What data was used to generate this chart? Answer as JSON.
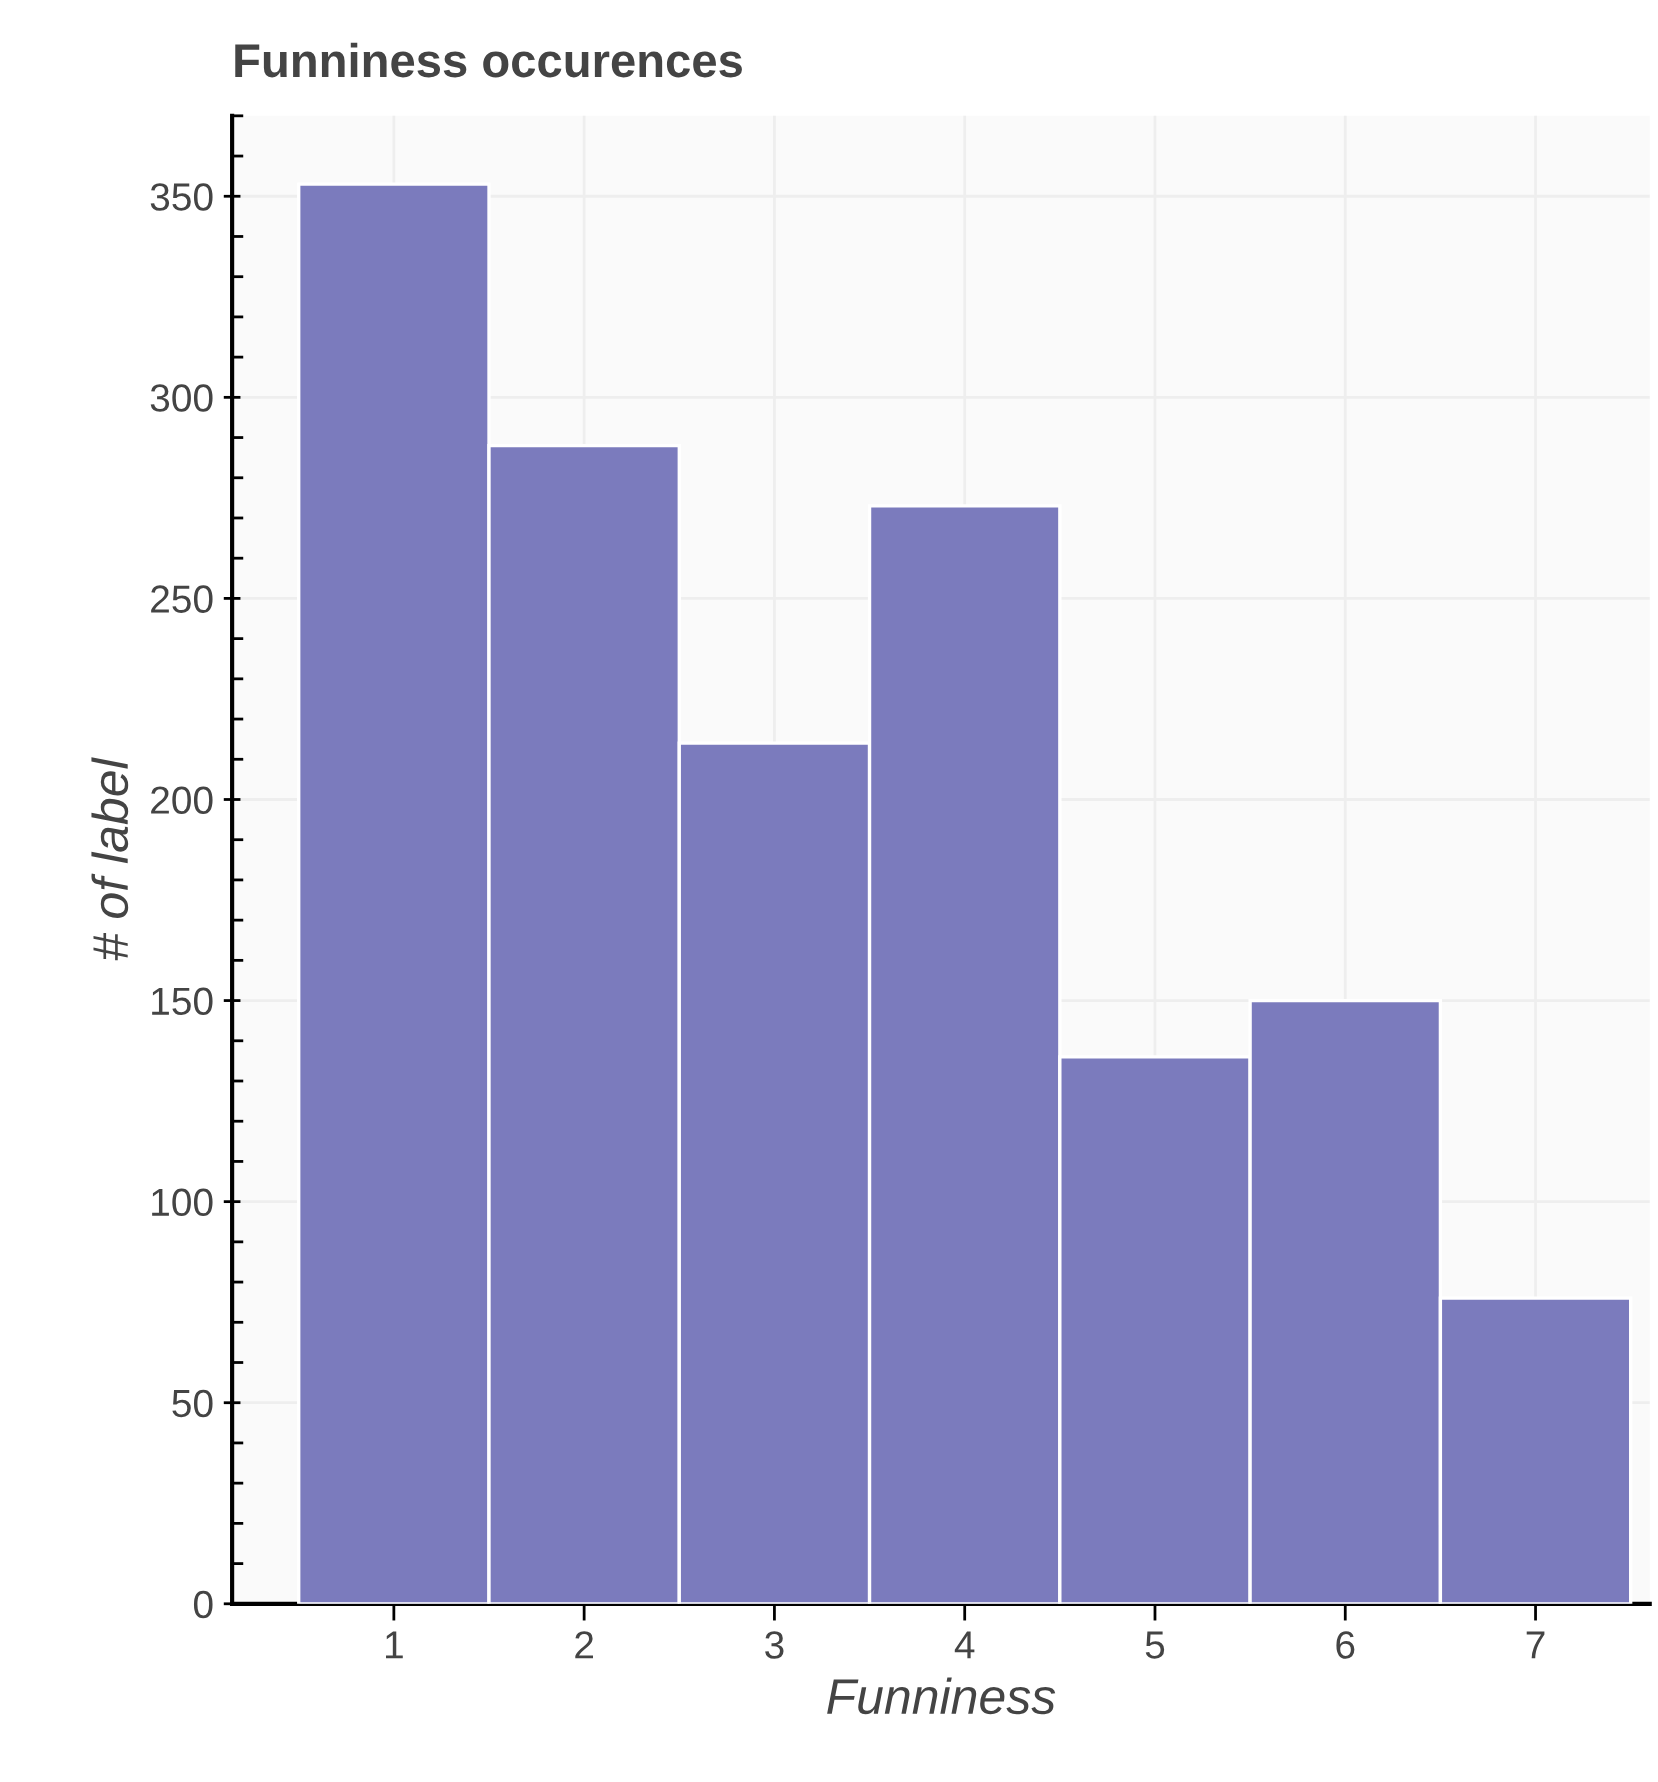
{
  "chart_data": {
    "type": "histogram",
    "title": "Funniness occurences",
    "xlabel": "Funniness",
    "ylabel": "# of label",
    "bins": [
      0.5,
      1.5,
      2.5,
      3.5,
      4.5,
      5.5,
      6.5,
      7.5
    ],
    "values": [
      353,
      288,
      214,
      273,
      136,
      150,
      76
    ],
    "color": "#7b7bbd",
    "xlim": [
      0.15,
      7.6
    ],
    "xticks": [
      1,
      2,
      3,
      4,
      5,
      6,
      7
    ],
    "ylim": [
      0,
      370
    ],
    "yticks": [
      0,
      50,
      100,
      150,
      200,
      250,
      300,
      350
    ],
    "grid": true
  }
}
